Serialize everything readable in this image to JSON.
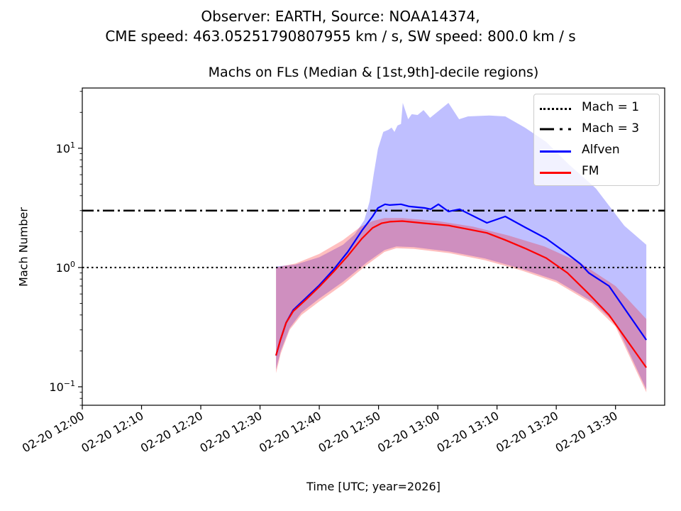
{
  "chart_data": {
    "type": "line",
    "suptitle_line1": "Observer: EARTH, Source: NOAA14374,",
    "suptitle_line2": "CME speed: 463.05251790807955 km / s, SW speed: 800.0 km / s",
    "title": "Machs on FLs (Median & [1st,9th]-decile regions)",
    "xlabel": "Time [UTC; year=2026]",
    "ylabel": "Mach Number",
    "yscale": "log",
    "ylim": [
      0.07,
      32
    ],
    "xlim_minutes_after_1200": [
      0,
      98.3
    ],
    "x_ticks": [
      {
        "minutes": 0,
        "label": "02-20 12:00"
      },
      {
        "minutes": 10,
        "label": "02-20 12:10"
      },
      {
        "minutes": 20,
        "label": "02-20 12:20"
      },
      {
        "minutes": 30,
        "label": "02-20 12:30"
      },
      {
        "minutes": 40,
        "label": "02-20 12:40"
      },
      {
        "minutes": 50,
        "label": "02-20 12:50"
      },
      {
        "minutes": 60,
        "label": "02-20 13:00"
      },
      {
        "minutes": 70,
        "label": "02-20 13:10"
      },
      {
        "minutes": 80,
        "label": "02-20 13:20"
      },
      {
        "minutes": 90,
        "label": "02-20 13:30"
      }
    ],
    "y_ticks": [
      {
        "value": 0.1,
        "base": "10",
        "exp": "−1"
      },
      {
        "value": 1,
        "base": "10",
        "exp": "0"
      },
      {
        "value": 10,
        "base": "10",
        "exp": "1"
      }
    ],
    "hlines": [
      {
        "name": "Mach = 1",
        "value": 1,
        "style": "dotted",
        "color": "#000000"
      },
      {
        "name": "Mach = 3",
        "value": 3,
        "style": "dashdot",
        "color": "#000000"
      }
    ],
    "legend_position": "upper-right",
    "legend": [
      "Mach = 1",
      "Mach = 3",
      "Alfven",
      "FM"
    ],
    "series": [
      {
        "name": "Alfven",
        "color": "#0000ff",
        "band_color": "#0000ff",
        "median": [
          [
            32.7,
            0.183
          ],
          [
            33.4,
            0.244
          ],
          [
            34.4,
            0.344
          ],
          [
            35.6,
            0.44
          ],
          [
            37.6,
            0.547
          ],
          [
            40.0,
            0.71
          ],
          [
            42.4,
            0.96
          ],
          [
            44.8,
            1.35
          ],
          [
            47.2,
            2.04
          ],
          [
            49.0,
            2.68
          ],
          [
            49.9,
            3.16
          ],
          [
            51.1,
            3.39
          ],
          [
            51.9,
            3.34
          ],
          [
            53.8,
            3.39
          ],
          [
            55.2,
            3.25
          ],
          [
            57.8,
            3.16
          ],
          [
            58.8,
            3.08
          ],
          [
            60.1,
            3.39
          ],
          [
            61.8,
            2.95
          ],
          [
            63.7,
            3.08
          ],
          [
            68.3,
            2.37
          ],
          [
            71.4,
            2.68
          ],
          [
            74.7,
            2.18
          ],
          [
            78.3,
            1.75
          ],
          [
            81.9,
            1.3
          ],
          [
            84.1,
            1.07
          ],
          [
            85.5,
            0.9
          ],
          [
            88.9,
            0.7
          ],
          [
            95.2,
            0.247
          ]
        ],
        "upper": [
          [
            32.7,
            1.02
          ],
          [
            36,
            1.06
          ],
          [
            40,
            1.22
          ],
          [
            44,
            1.55
          ],
          [
            46,
            1.9
          ],
          [
            47.6,
            2.5
          ],
          [
            48.5,
            3.6
          ],
          [
            49.2,
            6.1
          ],
          [
            49.9,
            9.9
          ],
          [
            50.8,
            13.7
          ],
          [
            51.7,
            14.3
          ],
          [
            52.2,
            14.9
          ],
          [
            52.7,
            13.7
          ],
          [
            53.2,
            15.5
          ],
          [
            53.8,
            16.0
          ],
          [
            54.1,
            24.0
          ],
          [
            55.0,
            17.5
          ],
          [
            55.6,
            19.3
          ],
          [
            56.6,
            19.0
          ],
          [
            57.6,
            20.9
          ],
          [
            58.7,
            18.0
          ],
          [
            61.8,
            24.0
          ],
          [
            63.6,
            17.5
          ],
          [
            65.1,
            18.5
          ],
          [
            68.7,
            18.8
          ],
          [
            71.4,
            18.5
          ],
          [
            74.7,
            14.9
          ],
          [
            78.3,
            11.3
          ],
          [
            81.9,
            7.5
          ],
          [
            86.7,
            4.6
          ],
          [
            91.5,
            2.24
          ],
          [
            95.2,
            1.55
          ]
        ],
        "lower": [
          [
            32.7,
            0.14
          ],
          [
            33.5,
            0.2
          ],
          [
            35,
            0.31
          ],
          [
            37,
            0.42
          ],
          [
            40,
            0.55
          ],
          [
            44,
            0.76
          ],
          [
            48,
            1.1
          ],
          [
            51,
            1.4
          ],
          [
            53,
            1.5
          ],
          [
            56,
            1.48
          ],
          [
            62,
            1.36
          ],
          [
            68,
            1.19
          ],
          [
            74,
            0.98
          ],
          [
            80,
            0.78
          ],
          [
            86,
            0.52
          ],
          [
            90,
            0.34
          ],
          [
            95.2,
            0.095
          ]
        ]
      },
      {
        "name": "FM",
        "color": "#ff0000",
        "band_color": "#ff0000",
        "median": [
          [
            32.7,
            0.183
          ],
          [
            33.4,
            0.244
          ],
          [
            34.4,
            0.344
          ],
          [
            35.6,
            0.43
          ],
          [
            37.6,
            0.53
          ],
          [
            40.0,
            0.69
          ],
          [
            42.4,
            0.92
          ],
          [
            44.8,
            1.25
          ],
          [
            47.2,
            1.75
          ],
          [
            49.0,
            2.15
          ],
          [
            50.5,
            2.35
          ],
          [
            51.9,
            2.42
          ],
          [
            54.0,
            2.45
          ],
          [
            57.8,
            2.35
          ],
          [
            61.8,
            2.25
          ],
          [
            65.0,
            2.1
          ],
          [
            68.3,
            1.95
          ],
          [
            71.4,
            1.7
          ],
          [
            74.7,
            1.45
          ],
          [
            78.3,
            1.2
          ],
          [
            81.9,
            0.9
          ],
          [
            85.5,
            0.6
          ],
          [
            88.9,
            0.4
          ],
          [
            95.2,
            0.145
          ]
        ],
        "upper": [
          [
            32.7,
            1.0
          ],
          [
            36,
            1.08
          ],
          [
            40,
            1.3
          ],
          [
            44,
            1.7
          ],
          [
            47,
            2.2
          ],
          [
            49,
            2.45
          ],
          [
            51,
            2.6
          ],
          [
            54,
            2.6
          ],
          [
            60,
            2.45
          ],
          [
            66,
            2.2
          ],
          [
            72,
            1.85
          ],
          [
            78,
            1.5
          ],
          [
            84,
            1.1
          ],
          [
            90,
            0.7
          ],
          [
            95.2,
            0.37
          ]
        ],
        "lower": [
          [
            32.7,
            0.13
          ],
          [
            33.5,
            0.19
          ],
          [
            35,
            0.3
          ],
          [
            37,
            0.4
          ],
          [
            40,
            0.52
          ],
          [
            44,
            0.72
          ],
          [
            48,
            1.05
          ],
          [
            51,
            1.35
          ],
          [
            53,
            1.45
          ],
          [
            56,
            1.43
          ],
          [
            62,
            1.32
          ],
          [
            68,
            1.15
          ],
          [
            74,
            0.95
          ],
          [
            80,
            0.75
          ],
          [
            86,
            0.5
          ],
          [
            90,
            0.32
          ],
          [
            95.2,
            0.09
          ]
        ]
      }
    ]
  }
}
